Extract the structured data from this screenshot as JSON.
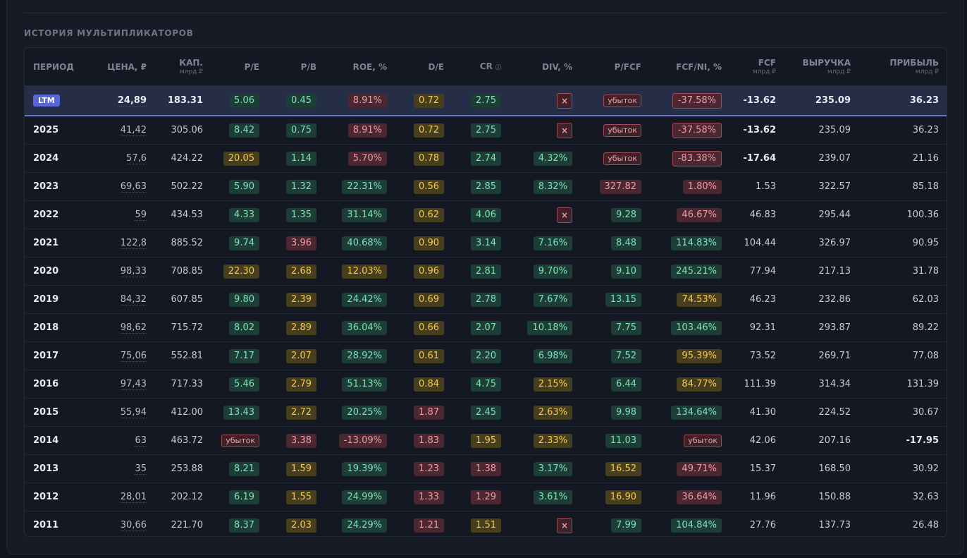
{
  "section_title": "ИСТОРИЯ МУЛЬТИПЛИКАТОРОВ",
  "columns": [
    {
      "label": "ПЕРИОД",
      "sub": ""
    },
    {
      "label": "ЦЕНА, ₽",
      "sub": ""
    },
    {
      "label": "КАП.",
      "sub": "млрд ₽"
    },
    {
      "label": "P/E",
      "sub": ""
    },
    {
      "label": "P/B",
      "sub": ""
    },
    {
      "label": "ROE, %",
      "sub": ""
    },
    {
      "label": "D/E",
      "sub": ""
    },
    {
      "label": "CR",
      "sub": "",
      "info": "ⓘ"
    },
    {
      "label": "DIV, %",
      "sub": ""
    },
    {
      "label": "P/FCF",
      "sub": ""
    },
    {
      "label": "FCF/NI, %",
      "sub": ""
    },
    {
      "label": "FCF",
      "sub": "млрд ₽"
    },
    {
      "label": "ВЫРУЧКА",
      "sub": "млрд ₽"
    },
    {
      "label": "ПРИБЫЛЬ",
      "sub": "млрд ₽"
    }
  ],
  "colors": {
    "green": "#7fe0bd",
    "yellow": "#f3ca52",
    "red": "#f29aa3",
    "accent": "#5b66d6"
  },
  "rows": [
    {
      "period": "LTM",
      "ltm": true,
      "price": "24,89",
      "cap": "183.31",
      "pe": {
        "v": "5.06",
        "c": "g"
      },
      "pb": {
        "v": "0.45",
        "c": "g"
      },
      "roe": {
        "v": "8.91%",
        "c": "r"
      },
      "de": {
        "v": "0.72",
        "c": "y"
      },
      "cr": {
        "v": "2.75",
        "c": "g"
      },
      "div": {
        "v": "×",
        "c": "x"
      },
      "pfcf": {
        "v": "убыток",
        "c": "loss"
      },
      "fcfni": {
        "v": "-37.58%",
        "c": "neg"
      },
      "fcf": "-13.62",
      "fcf_bold": true,
      "rev": "235.09",
      "prof": "36.23"
    },
    {
      "period": "2025",
      "price": "41,42",
      "cap": "305.06",
      "pe": {
        "v": "8.42",
        "c": "g"
      },
      "pb": {
        "v": "0.75",
        "c": "g"
      },
      "roe": {
        "v": "8.91%",
        "c": "r"
      },
      "de": {
        "v": "0.72",
        "c": "y"
      },
      "cr": {
        "v": "2.75",
        "c": "g"
      },
      "div": {
        "v": "×",
        "c": "x"
      },
      "pfcf": {
        "v": "убыток",
        "c": "loss"
      },
      "fcfni": {
        "v": "-37.58%",
        "c": "neg"
      },
      "fcf": "-13.62",
      "fcf_bold": true,
      "rev": "235.09",
      "prof": "36.23"
    },
    {
      "period": "2024",
      "price": "57,6",
      "cap": "424.22",
      "pe": {
        "v": "20.05",
        "c": "y"
      },
      "pb": {
        "v": "1.14",
        "c": "g"
      },
      "roe": {
        "v": "5.70%",
        "c": "r"
      },
      "de": {
        "v": "0.78",
        "c": "y"
      },
      "cr": {
        "v": "2.74",
        "c": "g"
      },
      "div": {
        "v": "4.32%",
        "c": "g"
      },
      "pfcf": {
        "v": "убыток",
        "c": "loss"
      },
      "fcfni": {
        "v": "-83.38%",
        "c": "neg"
      },
      "fcf": "-17.64",
      "fcf_bold": true,
      "rev": "239.07",
      "prof": "21.16"
    },
    {
      "period": "2023",
      "price": "69,63",
      "cap": "502.22",
      "pe": {
        "v": "5.90",
        "c": "g"
      },
      "pb": {
        "v": "1.32",
        "c": "g"
      },
      "roe": {
        "v": "22.31%",
        "c": "g"
      },
      "de": {
        "v": "0.56",
        "c": "y"
      },
      "cr": {
        "v": "2.85",
        "c": "g"
      },
      "div": {
        "v": "8.32%",
        "c": "g"
      },
      "pfcf": {
        "v": "327.82",
        "c": "r"
      },
      "fcfni": {
        "v": "1.80%",
        "c": "r"
      },
      "fcf": "1.53",
      "rev": "322.57",
      "prof": "85.18"
    },
    {
      "period": "2022",
      "price": "59",
      "cap": "434.53",
      "pe": {
        "v": "4.33",
        "c": "g"
      },
      "pb": {
        "v": "1.35",
        "c": "g"
      },
      "roe": {
        "v": "31.14%",
        "c": "g"
      },
      "de": {
        "v": "0.62",
        "c": "y"
      },
      "cr": {
        "v": "4.06",
        "c": "g"
      },
      "div": {
        "v": "×",
        "c": "x"
      },
      "pfcf": {
        "v": "9.28",
        "c": "g"
      },
      "fcfni": {
        "v": "46.67%",
        "c": "r"
      },
      "fcf": "46.83",
      "rev": "295.44",
      "prof": "100.36"
    },
    {
      "period": "2021",
      "price": "122,8",
      "cap": "885.52",
      "pe": {
        "v": "9.74",
        "c": "g"
      },
      "pb": {
        "v": "3.96",
        "c": "r"
      },
      "roe": {
        "v": "40.68%",
        "c": "g"
      },
      "de": {
        "v": "0.90",
        "c": "y"
      },
      "cr": {
        "v": "3.14",
        "c": "g"
      },
      "div": {
        "v": "7.16%",
        "c": "g"
      },
      "pfcf": {
        "v": "8.48",
        "c": "g"
      },
      "fcfni": {
        "v": "114.83%",
        "c": "g"
      },
      "fcf": "104.44",
      "rev": "326.97",
      "prof": "90.95"
    },
    {
      "period": "2020",
      "price": "98,33",
      "cap": "708.85",
      "pe": {
        "v": "22.30",
        "c": "y"
      },
      "pb": {
        "v": "2.68",
        "c": "y"
      },
      "roe": {
        "v": "12.03%",
        "c": "y"
      },
      "de": {
        "v": "0.96",
        "c": "y"
      },
      "cr": {
        "v": "2.81",
        "c": "g"
      },
      "div": {
        "v": "9.70%",
        "c": "g"
      },
      "pfcf": {
        "v": "9.10",
        "c": "g"
      },
      "fcfni": {
        "v": "245.21%",
        "c": "g"
      },
      "fcf": "77.94",
      "rev": "217.13",
      "prof": "31.78"
    },
    {
      "period": "2019",
      "price": "84,32",
      "cap": "607.85",
      "pe": {
        "v": "9.80",
        "c": "g"
      },
      "pb": {
        "v": "2.39",
        "c": "y"
      },
      "roe": {
        "v": "24.42%",
        "c": "g"
      },
      "de": {
        "v": "0.69",
        "c": "y"
      },
      "cr": {
        "v": "2.78",
        "c": "g"
      },
      "div": {
        "v": "7.67%",
        "c": "g"
      },
      "pfcf": {
        "v": "13.15",
        "c": "g"
      },
      "fcfni": {
        "v": "74.53%",
        "c": "y"
      },
      "fcf": "46.23",
      "rev": "232.86",
      "prof": "62.03"
    },
    {
      "period": "2018",
      "price": "98,62",
      "cap": "715.72",
      "pe": {
        "v": "8.02",
        "c": "g"
      },
      "pb": {
        "v": "2.89",
        "c": "y"
      },
      "roe": {
        "v": "36.04%",
        "c": "g"
      },
      "de": {
        "v": "0.66",
        "c": "y"
      },
      "cr": {
        "v": "2.07",
        "c": "g"
      },
      "div": {
        "v": "10.18%",
        "c": "g"
      },
      "pfcf": {
        "v": "7.75",
        "c": "g"
      },
      "fcfni": {
        "v": "103.46%",
        "c": "g"
      },
      "fcf": "92.31",
      "rev": "293.87",
      "prof": "89.22"
    },
    {
      "period": "2017",
      "price": "75,06",
      "cap": "552.81",
      "pe": {
        "v": "7.17",
        "c": "g"
      },
      "pb": {
        "v": "2.07",
        "c": "y"
      },
      "roe": {
        "v": "28.92%",
        "c": "g"
      },
      "de": {
        "v": "0.61",
        "c": "y"
      },
      "cr": {
        "v": "2.20",
        "c": "g"
      },
      "div": {
        "v": "6.98%",
        "c": "g"
      },
      "pfcf": {
        "v": "7.52",
        "c": "g"
      },
      "fcfni": {
        "v": "95.39%",
        "c": "y"
      },
      "fcf": "73.52",
      "rev": "269.71",
      "prof": "77.08"
    },
    {
      "period": "2016",
      "price": "97,43",
      "cap": "717.33",
      "pe": {
        "v": "5.46",
        "c": "g"
      },
      "pb": {
        "v": "2.79",
        "c": "y"
      },
      "roe": {
        "v": "51.13%",
        "c": "g"
      },
      "de": {
        "v": "0.84",
        "c": "y"
      },
      "cr": {
        "v": "4.75",
        "c": "g"
      },
      "div": {
        "v": "2.15%",
        "c": "y"
      },
      "pfcf": {
        "v": "6.44",
        "c": "g"
      },
      "fcfni": {
        "v": "84.77%",
        "c": "y"
      },
      "fcf": "111.39",
      "rev": "314.34",
      "prof": "131.39"
    },
    {
      "period": "2015",
      "price": "55,94",
      "cap": "412.00",
      "pe": {
        "v": "13.43",
        "c": "g"
      },
      "pb": {
        "v": "2.72",
        "c": "y"
      },
      "roe": {
        "v": "20.25%",
        "c": "g"
      },
      "de": {
        "v": "1.87",
        "c": "r"
      },
      "cr": {
        "v": "2.45",
        "c": "g"
      },
      "div": {
        "v": "2.63%",
        "c": "y"
      },
      "pfcf": {
        "v": "9.98",
        "c": "g"
      },
      "fcfni": {
        "v": "134.64%",
        "c": "g"
      },
      "fcf": "41.30",
      "rev": "224.52",
      "prof": "30.67"
    },
    {
      "period": "2014",
      "price": "63",
      "cap": "463.72",
      "pe": {
        "v": "убыток",
        "c": "loss"
      },
      "pb": {
        "v": "3.38",
        "c": "r"
      },
      "roe": {
        "v": "-13.09%",
        "c": "r"
      },
      "de": {
        "v": "1.83",
        "c": "r"
      },
      "cr": {
        "v": "1.95",
        "c": "y"
      },
      "div": {
        "v": "2.33%",
        "c": "y"
      },
      "pfcf": {
        "v": "11.03",
        "c": "g"
      },
      "fcfni": {
        "v": "убыток",
        "c": "loss"
      },
      "fcf": "42.06",
      "rev": "207.16",
      "prof": "-17.95",
      "prof_bold": true
    },
    {
      "period": "2013",
      "price": "35",
      "cap": "253.88",
      "pe": {
        "v": "8.21",
        "c": "g"
      },
      "pb": {
        "v": "1.59",
        "c": "y"
      },
      "roe": {
        "v": "19.39%",
        "c": "g"
      },
      "de": {
        "v": "1.23",
        "c": "r"
      },
      "cr": {
        "v": "1.38",
        "c": "r"
      },
      "div": {
        "v": "3.17%",
        "c": "g"
      },
      "pfcf": {
        "v": "16.52",
        "c": "y"
      },
      "fcfni": {
        "v": "49.71%",
        "c": "r"
      },
      "fcf": "15.37",
      "rev": "168.50",
      "prof": "30.92"
    },
    {
      "period": "2012",
      "price": "28,01",
      "cap": "202.12",
      "pe": {
        "v": "6.19",
        "c": "g"
      },
      "pb": {
        "v": "1.55",
        "c": "y"
      },
      "roe": {
        "v": "24.99%",
        "c": "g"
      },
      "de": {
        "v": "1.33",
        "c": "r"
      },
      "cr": {
        "v": "1.29",
        "c": "r"
      },
      "div": {
        "v": "3.61%",
        "c": "g"
      },
      "pfcf": {
        "v": "16.90",
        "c": "y"
      },
      "fcfni": {
        "v": "36.64%",
        "c": "r"
      },
      "fcf": "11.96",
      "rev": "150.88",
      "prof": "32.63"
    },
    {
      "period": "2011",
      "price": "30,66",
      "cap": "221.70",
      "pe": {
        "v": "8.37",
        "c": "g"
      },
      "pb": {
        "v": "2.03",
        "c": "y"
      },
      "roe": {
        "v": "24.29%",
        "c": "g"
      },
      "de": {
        "v": "1.21",
        "c": "r"
      },
      "cr": {
        "v": "1.51",
        "c": "y"
      },
      "div": {
        "v": "×",
        "c": "x"
      },
      "pfcf": {
        "v": "7.99",
        "c": "g"
      },
      "fcfni": {
        "v": "104.84%",
        "c": "g"
      },
      "fcf": "27.76",
      "rev": "137.73",
      "prof": "26.48"
    }
  ]
}
